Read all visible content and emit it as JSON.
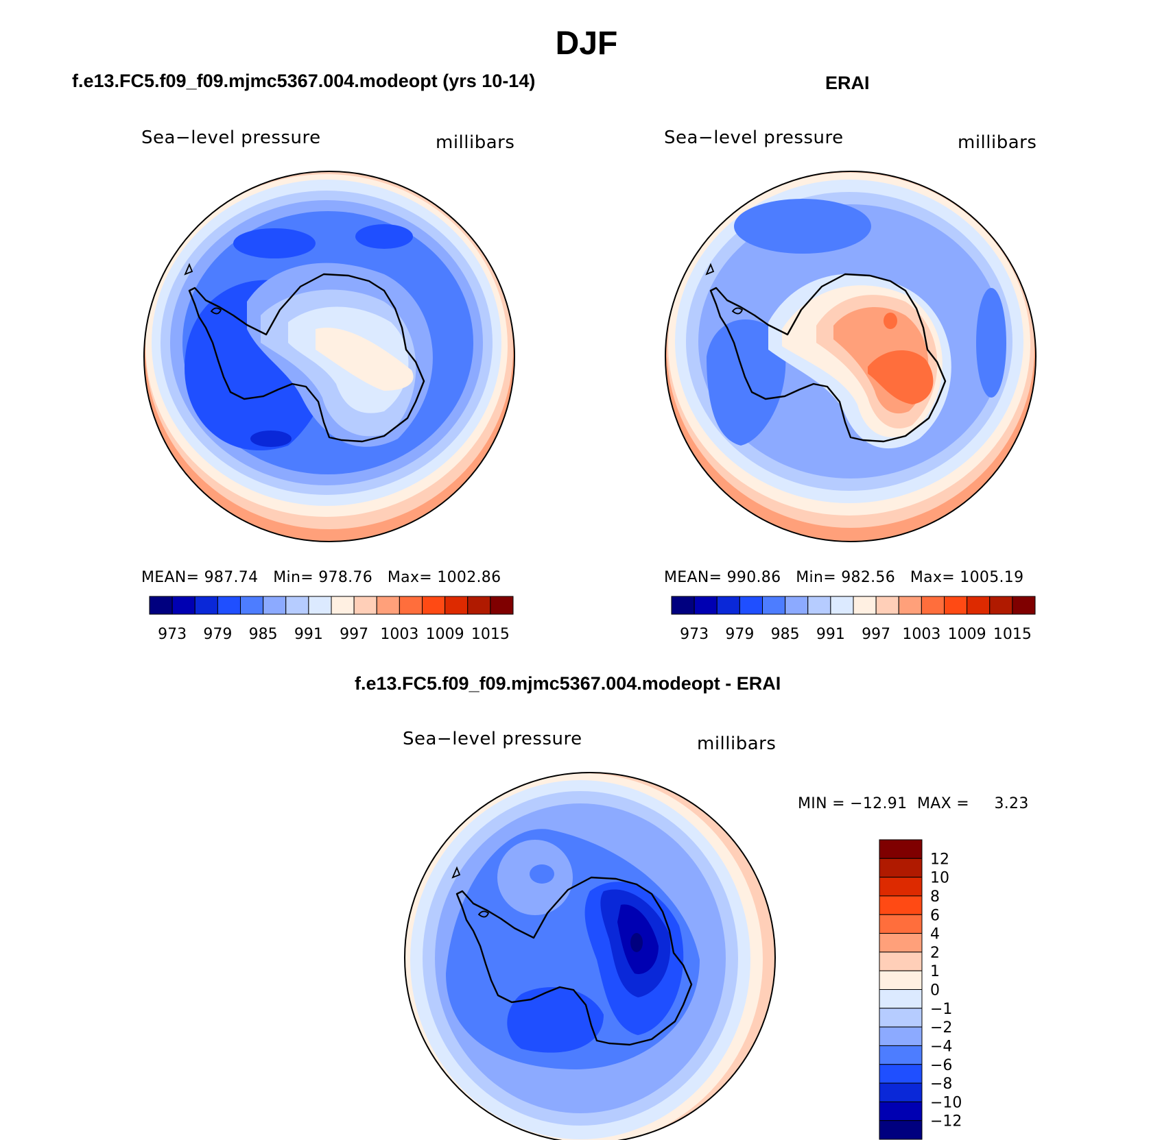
{
  "figure_title": "DJF",
  "panels": {
    "model": {
      "title": "f.e13.FC5.f09_f09.mjmc5367.004.modeopt (yrs 10-14)",
      "variable": "Sea−level pressure",
      "units": "millibars",
      "stats": "MEAN= 987.74   Min= 978.76   Max= 1002.86"
    },
    "obs": {
      "title": "ERAI",
      "variable": "Sea−level pressure",
      "units": "millibars",
      "stats": "MEAN= 990.86   Min= 982.56   Max= 1005.19"
    },
    "diff": {
      "title": "f.e13.FC5.f09_f09.mjmc5367.004.modeopt - ERAI",
      "variable": "Sea−level pressure",
      "units": "millibars",
      "stats": "MIN = −12.91  MAX =     3.23"
    }
  },
  "chart_data": [
    {
      "type": "heatmap",
      "name": "f.e13.FC5.f09_f09.mjmc5367.004.modeopt (yrs 10-14)",
      "projection": "south polar stereographic",
      "variable": "Sea−level pressure",
      "units": "millibars",
      "mean": 987.74,
      "min": 978.76,
      "max": 1002.86,
      "colorbar_levels": [
        "973",
        "979",
        "985",
        "991",
        "997",
        "1003",
        "1009",
        "1015"
      ],
      "colors": [
        "#00007f",
        "#0000b2",
        "#0a28d8",
        "#1f4fff",
        "#4d7dff",
        "#8caaff",
        "#b6ccff",
        "#dceaff",
        "#fff0e2",
        "#ffcfb8",
        "#ffa07a",
        "#ff6e3c",
        "#ff4a14",
        "#dd2a00",
        "#b01a00",
        "#7f0000"
      ]
    },
    {
      "type": "heatmap",
      "name": "ERAI",
      "projection": "south polar stereographic",
      "variable": "Sea−level pressure",
      "units": "millibars",
      "mean": 990.86,
      "min": 982.56,
      "max": 1005.19,
      "colorbar_levels": [
        "973",
        "979",
        "985",
        "991",
        "997",
        "1003",
        "1009",
        "1015"
      ],
      "colors": [
        "#00007f",
        "#0000b2",
        "#0a28d8",
        "#1f4fff",
        "#4d7dff",
        "#8caaff",
        "#b6ccff",
        "#dceaff",
        "#fff0e2",
        "#ffcfb8",
        "#ffa07a",
        "#ff6e3c",
        "#ff4a14",
        "#dd2a00",
        "#b01a00",
        "#7f0000"
      ]
    },
    {
      "type": "heatmap",
      "name": "f.e13.FC5.f09_f09.mjmc5367.004.modeopt - ERAI",
      "projection": "south polar stereographic",
      "variable": "Sea−level pressure",
      "units": "millibars",
      "min": -12.91,
      "max": 3.23,
      "colorbar_levels": [
        "12",
        "10",
        "8",
        "6",
        "4",
        "2",
        "1",
        "0",
        "−1",
        "−2",
        "−4",
        "−6",
        "−8",
        "−10",
        "−12"
      ],
      "colors": [
        "#7f0000",
        "#b01a00",
        "#dd2a00",
        "#ff4a14",
        "#ff6e3c",
        "#ffa07a",
        "#ffcfb8",
        "#fff0e2",
        "#dceaff",
        "#b6ccff",
        "#8caaff",
        "#4d7dff",
        "#1f4fff",
        "#0a28d8",
        "#0000b2",
        "#00007f"
      ]
    }
  ]
}
